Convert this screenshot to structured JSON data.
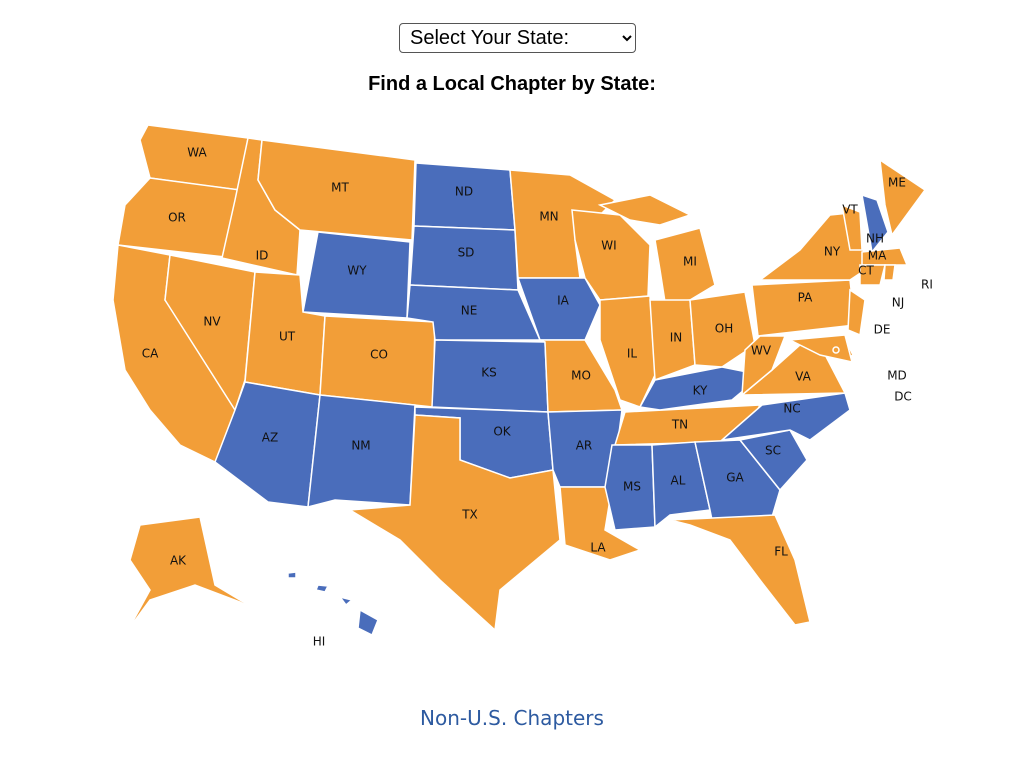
{
  "select": {
    "label": "Select Your State:"
  },
  "heading": "Find a Local Chapter by State:",
  "map": {
    "states": [
      {
        "label": "WA",
        "color": "#f29e38"
      },
      {
        "label": "OR",
        "color": "#f29e38"
      },
      {
        "label": "CA",
        "color": "#f29e38"
      },
      {
        "label": "ID",
        "color": "#f29e38"
      },
      {
        "label": "NV",
        "color": "#f29e38"
      },
      {
        "label": "MT",
        "color": "#f29e38"
      },
      {
        "label": "WY",
        "color": "#4a6dbb"
      },
      {
        "label": "UT",
        "color": "#f29e38"
      },
      {
        "label": "CO",
        "color": "#f29e38"
      },
      {
        "label": "AZ",
        "color": "#4a6dbb"
      },
      {
        "label": "NM",
        "color": "#4a6dbb"
      },
      {
        "label": "ND",
        "color": "#4a6dbb"
      },
      {
        "label": "SD",
        "color": "#4a6dbb"
      },
      {
        "label": "NE",
        "color": "#4a6dbb"
      },
      {
        "label": "KS",
        "color": "#4a6dbb"
      },
      {
        "label": "OK",
        "color": "#4a6dbb"
      },
      {
        "label": "TX",
        "color": "#f29e38"
      },
      {
        "label": "MN",
        "color": "#f29e38"
      },
      {
        "label": "IA",
        "color": "#4a6dbb"
      },
      {
        "label": "MO",
        "color": "#f29e38"
      },
      {
        "label": "AR",
        "color": "#4a6dbb"
      },
      {
        "label": "LA",
        "color": "#f29e38"
      },
      {
        "label": "WI",
        "color": "#f29e38"
      },
      {
        "label": "MI",
        "color": "#f29e38"
      },
      {
        "label": "IL",
        "color": "#f29e38"
      },
      {
        "label": "IN",
        "color": "#f29e38"
      },
      {
        "label": "OH",
        "color": "#f29e38"
      },
      {
        "label": "KY",
        "color": "#4a6dbb"
      },
      {
        "label": "TN",
        "color": "#f29e38"
      },
      {
        "label": "MS",
        "color": "#4a6dbb"
      },
      {
        "label": "AL",
        "color": "#4a6dbb"
      },
      {
        "label": "GA",
        "color": "#4a6dbb"
      },
      {
        "label": "FL",
        "color": "#f29e38"
      },
      {
        "label": "SC",
        "color": "#4a6dbb"
      },
      {
        "label": "NC",
        "color": "#4a6dbb"
      },
      {
        "label": "VA",
        "color": "#f29e38"
      },
      {
        "label": "WV",
        "color": "#f29e38"
      },
      {
        "label": "PA",
        "color": "#f29e38"
      },
      {
        "label": "NY",
        "color": "#f29e38"
      },
      {
        "label": "VT",
        "color": "#f29e38"
      },
      {
        "label": "NH",
        "color": "#4a6dbb"
      },
      {
        "label": "ME",
        "color": "#f29e38"
      },
      {
        "label": "MA",
        "color": "#f29e38"
      },
      {
        "label": "CT",
        "color": "#f29e38"
      },
      {
        "label": "RI",
        "color": "#f29e38"
      },
      {
        "label": "NJ",
        "color": "#f29e38"
      },
      {
        "label": "DE",
        "color": "#f29e38"
      },
      {
        "label": "MD",
        "color": "#f29e38"
      },
      {
        "label": "DC",
        "color": "#f29e38"
      },
      {
        "label": "AK",
        "color": "#f29e38"
      },
      {
        "label": "HI",
        "color": "#4a6dbb"
      }
    ]
  },
  "footer_link": "Non-U.S. Chapters"
}
